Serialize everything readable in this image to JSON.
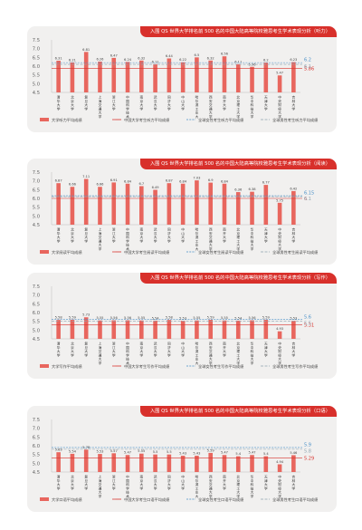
{
  "colors": {
    "bar": "#e8665e",
    "china": "#d8302b",
    "female": "#4a90c8",
    "global": "#8fa3b0"
  },
  "categories": [
    "清华大学",
    "北京大学",
    "复旦大学",
    "上海交通大学",
    "浙江大学",
    "中国科学技术大学",
    "南京大学",
    "武汉大学",
    "同济大学",
    "中山大学",
    "哈尔滨工业大学",
    "西安交通大学",
    "南开大学",
    "北京理工大学",
    "华中科技大学",
    "天津大学",
    "中央财经大学",
    "吉林大学"
  ],
  "chart_data": [
    {
      "type": "bar",
      "title": "入围 QS 世界大学排名前 500 名的中国大陆高等院校雅思考生学术表现分析（听力）",
      "categories": [
        "清华大学",
        "北京大学",
        "复旦大学",
        "上海交通大学",
        "浙江大学",
        "中国科学技术大学",
        "南京大学",
        "武汉大学",
        "同济大学",
        "中山大学",
        "哈尔滨工业大学",
        "西安交通大学",
        "南开大学",
        "北京理工大学",
        "华中科技大学",
        "天津大学",
        "中央财经大学",
        "吉林大学"
      ],
      "series": [
        {
          "name": "大学听力平均成绩",
          "values": [
            6.31,
            6.21,
            6.81,
            6.26,
            6.47,
            6.24,
            6.32,
            6.11,
            6.44,
            6.22,
            6.5,
            6.32,
            6.56,
            6.11,
            5.96,
            6.2,
            5.47,
            6.23
          ]
        }
      ],
      "reference_lines": [
        {
          "name": "中国大学考生听力平均成绩",
          "value": 5.86,
          "label": "5.86"
        },
        {
          "name": "全球女性考生听力平均成绩",
          "value": 6.2,
          "label": "6.2"
        },
        {
          "name": "全球男性考生听力平均成绩",
          "value": 6.1,
          "label": "6.1"
        }
      ],
      "ylim": [
        4.5,
        7.5
      ],
      "yticks": [
        "7.5",
        "7.0",
        "6.5",
        "6.0",
        "5.5",
        "5.0",
        "4.5"
      ],
      "grid": false,
      "legend_position": "bottom"
    },
    {
      "type": "bar",
      "title": "入围 QS 世界大学排名前 500 名的中国大陆高等院校雅思考生学术表现分析（阅读）",
      "categories": [
        "清华大学",
        "北京大学",
        "复旦大学",
        "上海交通大学",
        "浙江大学",
        "中国科学技术大学",
        "南京大学",
        "武汉大学",
        "同济大学",
        "中山大学",
        "哈尔滨工业大学",
        "西安交通大学",
        "南开大学",
        "北京理工大学",
        "华中科技大学",
        "天津大学",
        "中央财经大学",
        "吉林大学"
      ],
      "series": [
        {
          "name": "大学阅读平均成绩",
          "values": [
            6.87,
            6.66,
            7.11,
            6.66,
            6.91,
            6.84,
            6.7,
            6.49,
            6.87,
            6.84,
            7.03,
            6.9,
            6.84,
            6.36,
            6.38,
            6.77,
            5.75,
            6.42
          ]
        }
      ],
      "reference_lines": [
        {
          "name": "中国大学考生阅读平均成绩",
          "value": 6.0,
          "label": "6"
        },
        {
          "name": "全球女性考生阅读平均成绩",
          "value": 6.15,
          "label": "6.15"
        },
        {
          "name": "全球男性考生阅读平均成绩",
          "value": 6.1,
          "label": "6.1"
        }
      ],
      "ylim": [
        4.5,
        7.5
      ],
      "yticks": [
        "7.5",
        "7.0",
        "6.5",
        "6.0",
        "5.5",
        "5.0",
        "4.5"
      ],
      "grid": false,
      "legend_position": "bottom"
    },
    {
      "type": "bar",
      "title": "入围 QS 世界大学排名前 500 名的中国大陆高等院校雅思考生学术表现分析（写作）",
      "categories": [
        "清华大学",
        "北京大学",
        "复旦大学",
        "上海交通大学",
        "浙江大学",
        "中国科学技术大学",
        "南京大学",
        "武汉大学",
        "同济大学",
        "中山大学",
        "哈尔滨工业大学",
        "西安交通大学",
        "南开大学",
        "北京理工大学",
        "华中科技大学",
        "天津大学",
        "中央财经大学",
        "吉林大学"
      ],
      "series": [
        {
          "name": "大学写作平均成绩",
          "values": [
            5.58,
            5.59,
            5.73,
            5.55,
            5.56,
            5.56,
            5.55,
            5.54,
            5.58,
            5.53,
            5.55,
            5.59,
            5.55,
            5.54,
            5.56,
            5.59,
            4.93,
            5.53
          ]
        }
      ],
      "reference_lines": [
        {
          "name": "中国大学考生写作平均成绩",
          "value": 5.31,
          "label": "5.31"
        },
        {
          "name": "全球女性考生写作平均成绩",
          "value": 5.6,
          "label": "5.6"
        },
        {
          "name": "全球男性考生写作平均成绩",
          "value": 5.5,
          "label": "5.5"
        }
      ],
      "ylim": [
        4.5,
        7.5
      ],
      "yticks": [
        "7.5",
        "7.0",
        "6.5",
        "6.0",
        "5.5",
        "5.0",
        "4.5"
      ],
      "grid": false,
      "legend_position": "bottom"
    },
    {
      "type": "bar",
      "title": "入围 QS 世界大学排名前 500 名的中国大陆高等院校雅思考生学术表现分析（口语）",
      "categories": [
        "清华大学",
        "北京大学",
        "复旦大学",
        "上海交通大学",
        "浙江大学",
        "中国科学技术大学",
        "南京大学",
        "武汉大学",
        "同济大学",
        "中山大学",
        "哈尔滨工业大学",
        "西安交通大学",
        "南开大学",
        "北京理工大学",
        "华中科技大学",
        "天津大学",
        "中央财经大学",
        "吉林大学"
      ],
      "series": [
        {
          "name": "大学口语平均成绩",
          "values": [
            5.63,
            5.54,
            5.78,
            5.53,
            5.57,
            5.47,
            5.55,
            5.5,
            5.5,
            5.43,
            5.43,
            5.59,
            5.47,
            5.4,
            5.47,
            5.4,
            4.94,
            5.46
          ]
        }
      ],
      "reference_lines": [
        {
          "name": "中国大学考生口语平均成绩",
          "value": 5.29,
          "label": "5.29"
        },
        {
          "name": "全球女性考生口语平均成绩",
          "value": 5.9,
          "label": "5.9"
        },
        {
          "name": "全球男性考生口语平均成绩",
          "value": 5.8,
          "label": "5.8"
        }
      ],
      "ylim": [
        4.5,
        7.5
      ],
      "yticks": [
        "7.5",
        "7.0",
        "6.5",
        "6.0",
        "5.5",
        "5.0",
        "4.5"
      ],
      "grid": false,
      "legend_position": "bottom"
    }
  ]
}
